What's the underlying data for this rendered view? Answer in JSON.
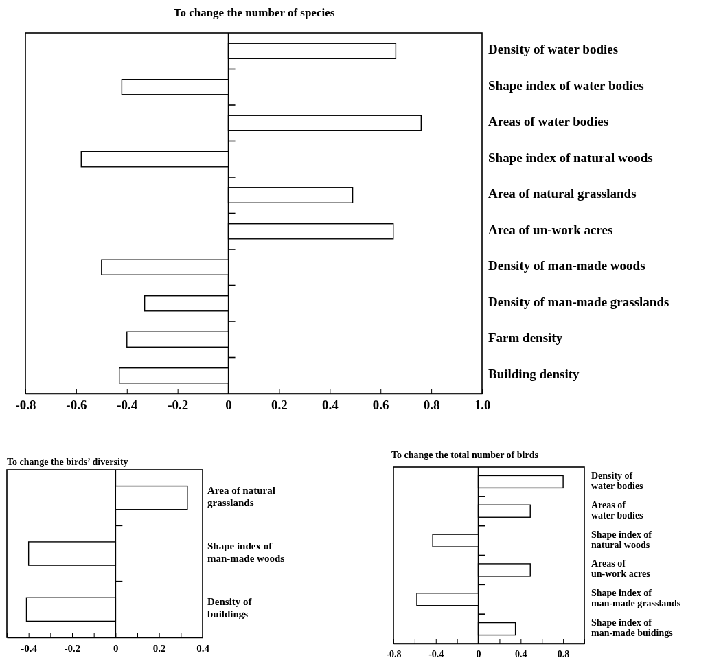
{
  "chart_data": [
    {
      "type": "bar",
      "orientation": "horizontal",
      "title": "To change the number of species",
      "categories": [
        "Density of water bodies",
        "Shape index of water bodies",
        "Areas of water bodies",
        "Shape index of natural woods",
        "Area of natural grasslands",
        "Area of un-work acres",
        "Density of man-made woods",
        "Density of man-made grasslands",
        "Farm density",
        "Building density"
      ],
      "series": [
        {
          "color": "#ffffff",
          "values": [
            0.66,
            -0.42,
            0.76,
            -0.58,
            0.49,
            0.65,
            -0.5,
            -0.33,
            -0.4,
            -0.43
          ]
        }
      ],
      "xlim": [
        -0.8,
        1.0
      ],
      "xticks": [
        -0.8,
        -0.6,
        -0.4,
        -0.2,
        0,
        0.2,
        0.4,
        0.6,
        0.8,
        {
          "value": 1.0,
          "label": "1.0"
        }
      ]
    },
    {
      "type": "bar",
      "orientation": "horizontal",
      "title": "To change the birds’ diversity",
      "categories": [
        "Area of natural\ngrasslands",
        "Shape index of\nman-made woods",
        "Density of\nbuildings"
      ],
      "series": [
        {
          "color": "#ffffff",
          "values": [
            0.33,
            -0.4,
            -0.41
          ]
        }
      ],
      "xlim": [
        -0.5,
        0.4
      ],
      "xticks": [
        {
          "value": -0.5,
          "label": null
        },
        -0.4,
        {
          "value": -0.3,
          "label": null
        },
        -0.2,
        {
          "value": -0.1,
          "label": null
        },
        0,
        {
          "value": 0.1,
          "label": null
        },
        0.2,
        {
          "value": 0.3,
          "label": null
        },
        0.4
      ]
    },
    {
      "type": "bar",
      "orientation": "horizontal",
      "title": "To change the total number of birds",
      "categories": [
        "Density of\nwater bodies",
        "Areas of\nwater bodies",
        "Shape index of\nnatural woods",
        "Areas of\nun-work acres",
        "Shape index of\nman-made grasslands",
        "Shape index of\nman-made buidings"
      ],
      "series": [
        {
          "color": "#ffffff",
          "values": [
            0.8,
            0.49,
            -0.43,
            0.49,
            -0.58,
            0.35
          ]
        }
      ],
      "xlim": [
        -0.8,
        1.0
      ],
      "xticks": [
        -0.8,
        {
          "value": -0.6,
          "label": null
        },
        -0.4,
        {
          "value": -0.2,
          "label": null
        },
        0,
        {
          "value": 0.2,
          "label": null
        },
        0.4,
        {
          "value": 0.6,
          "label": null
        },
        0.8,
        {
          "value": 1.0,
          "label": null
        }
      ]
    }
  ]
}
